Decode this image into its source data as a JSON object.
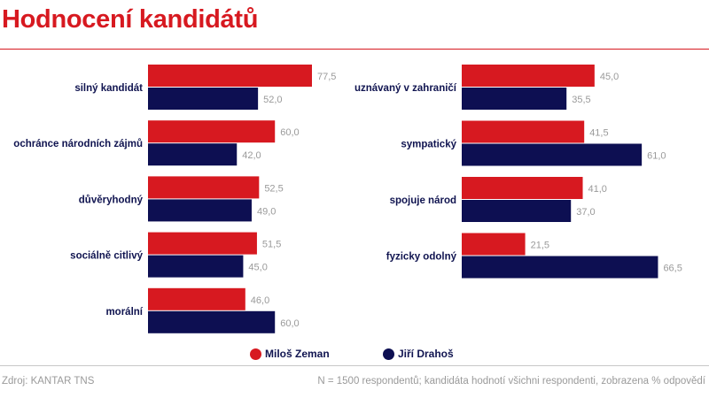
{
  "title": "Hodnocení kandidátů",
  "chart_data": [
    {
      "type": "bar",
      "orientation": "horizontal",
      "categories": [
        "silný kandidát",
        "ochránce národních zájmů",
        "důvěryhodný",
        "sociálně citlivý",
        "morální"
      ],
      "series": [
        {
          "name": "Miloš Zeman",
          "color": "#d71920",
          "values": [
            77.5,
            60.0,
            52.5,
            51.5,
            46.0
          ]
        },
        {
          "name": "Jiří Drahoš",
          "color": "#0d0f52",
          "values": [
            52.0,
            42.0,
            49.0,
            45.0,
            60.0
          ]
        }
      ]
    },
    {
      "type": "bar",
      "orientation": "horizontal",
      "categories": [
        "uznávaný v zahraničí",
        "sympatický",
        "spojuje národ",
        "fyzicky odolný"
      ],
      "series": [
        {
          "name": "Miloš Zeman",
          "color": "#d71920",
          "values": [
            45.0,
            41.5,
            41.0,
            21.5
          ]
        },
        {
          "name": "Jiří Drahoš",
          "color": "#0d0f52",
          "values": [
            35.5,
            61.0,
            37.0,
            66.5
          ]
        }
      ]
    }
  ],
  "legend": [
    {
      "name": "Miloš Zeman",
      "color": "#d71920"
    },
    {
      "name": "Jiří Drahoš",
      "color": "#0d0f52"
    }
  ],
  "footer": {
    "source": "Zdroj: KANTAR TNS",
    "note": "N = 1500 respondentů; kandidáta hodnotí všichni respondenti, zobrazena % odpovědí"
  }
}
